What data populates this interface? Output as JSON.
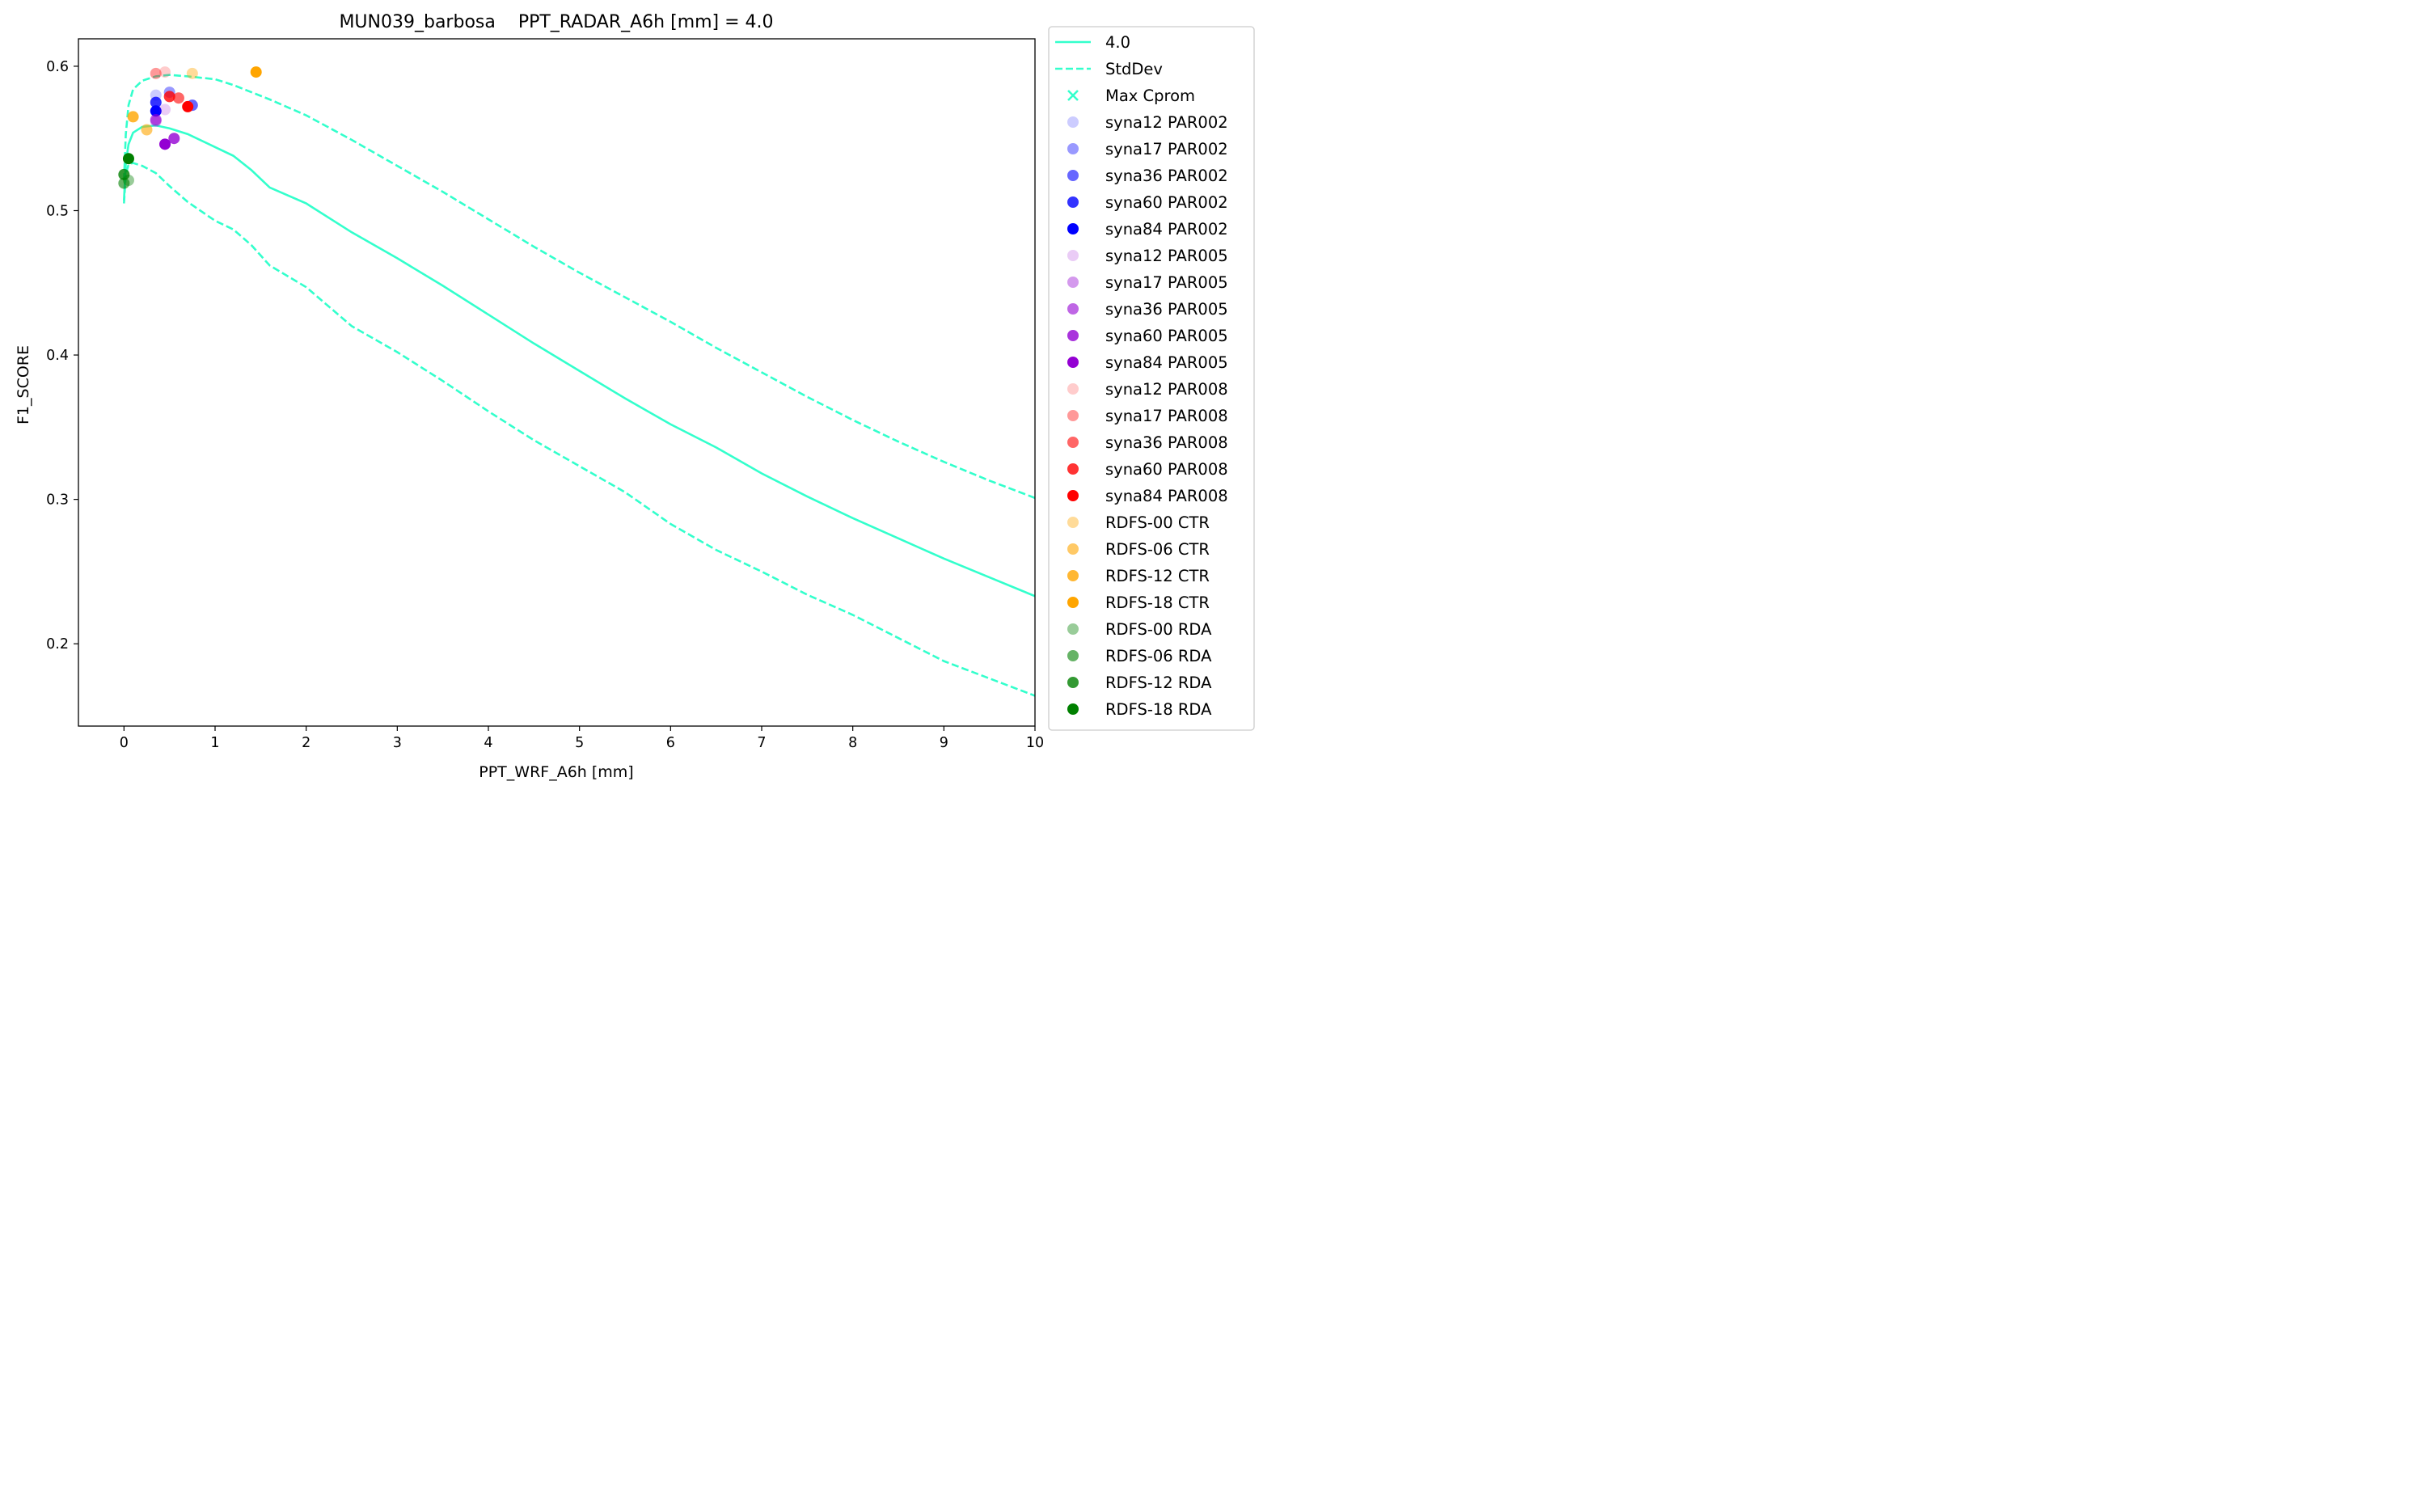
{
  "chart_data": {
    "type": "scatter",
    "title": "MUN039_barbosa    PPT_RADAR_A6h [mm] = 4.0",
    "xlabel": "PPT_WRF_A6h [mm]",
    "ylabel": "F1_SCORE",
    "xlim": [
      -0.5,
      10
    ],
    "ylim": [
      0.143,
      0.619
    ],
    "xticks": [
      0,
      1,
      2,
      3,
      4,
      5,
      6,
      7,
      8,
      9,
      10
    ],
    "yticks": [
      0.2,
      0.3,
      0.4,
      0.5,
      0.6
    ],
    "grid": false,
    "legend_position": "outside-right",
    "lines": [
      {
        "name": "4.0",
        "style": "solid",
        "color": "#33ffcc",
        "x": [
          0.0,
          0.02,
          0.05,
          0.1,
          0.2,
          0.35,
          0.5,
          0.7,
          1.0,
          1.2,
          1.4,
          1.6,
          2.0,
          2.5,
          3.0,
          3.5,
          4.0,
          4.5,
          5.0,
          5.5,
          6.0,
          6.5,
          7.0,
          7.5,
          8.0,
          8.5,
          9.0,
          9.5,
          10.0
        ],
        "y": [
          0.507,
          0.533,
          0.546,
          0.554,
          0.558,
          0.559,
          0.557,
          0.553,
          0.544,
          0.538,
          0.528,
          0.516,
          0.505,
          0.485,
          0.467,
          0.448,
          0.428,
          0.408,
          0.389,
          0.37,
          0.352,
          0.336,
          0.318,
          0.302,
          0.287,
          0.273,
          0.259,
          0.246,
          0.233
        ]
      },
      {
        "name": "StdDev",
        "style": "dashed",
        "color": "#33ffcc",
        "x": [
          0.0,
          0.02,
          0.05,
          0.1,
          0.2,
          0.35,
          0.5,
          0.7,
          1.0,
          1.2,
          1.4,
          1.6,
          2.0,
          2.5,
          3.0,
          3.5,
          4.0,
          4.5,
          5.0,
          5.5,
          6.0,
          6.5,
          7.0,
          7.5,
          8.0,
          8.5,
          9.0,
          9.5,
          10.0
        ],
        "y": [
          0.521,
          0.553,
          0.573,
          0.584,
          0.59,
          0.593,
          0.594,
          0.593,
          0.591,
          0.587,
          0.582,
          0.577,
          0.566,
          0.549,
          0.531,
          0.513,
          0.494,
          0.475,
          0.457,
          0.44,
          0.423,
          0.405,
          0.388,
          0.371,
          0.355,
          0.34,
          0.326,
          0.313,
          0.301
        ]
      },
      {
        "name": "",
        "style": "dashed",
        "color": "#33ffcc",
        "x": [
          0.0,
          0.02,
          0.05,
          0.1,
          0.2,
          0.35,
          0.5,
          0.7,
          1.0,
          1.2,
          1.4,
          1.6,
          2.0,
          2.5,
          3.0,
          3.5,
          4.0,
          4.5,
          5.0,
          5.5,
          6.0,
          6.5,
          7.0,
          7.5,
          8.0,
          8.5,
          9.0,
          9.5,
          10.0
        ],
        "y": [
          0.505,
          0.525,
          0.532,
          0.533,
          0.531,
          0.526,
          0.517,
          0.506,
          0.493,
          0.487,
          0.476,
          0.462,
          0.447,
          0.42,
          0.402,
          0.382,
          0.361,
          0.341,
          0.323,
          0.305,
          0.283,
          0.265,
          0.25,
          0.234,
          0.22,
          0.204,
          0.188,
          0.176,
          0.164
        ]
      }
    ],
    "series": [
      {
        "name": "Max Cprom",
        "marker": "x",
        "color": "#33ffcc",
        "opacity": 1.0,
        "points": []
      },
      {
        "name": "syna12 PAR002",
        "color": "#0000ff",
        "opacity": 0.2,
        "points": [
          {
            "x": 0.35,
            "y": 0.58
          }
        ]
      },
      {
        "name": "syna17 PAR002",
        "color": "#0000ff",
        "opacity": 0.4,
        "points": [
          {
            "x": 0.5,
            "y": 0.582
          }
        ]
      },
      {
        "name": "syna36 PAR002",
        "color": "#0000ff",
        "opacity": 0.6,
        "points": [
          {
            "x": 0.75,
            "y": 0.573
          }
        ]
      },
      {
        "name": "syna60 PAR002",
        "color": "#0000ff",
        "opacity": 0.8,
        "points": [
          {
            "x": 0.35,
            "y": 0.575
          }
        ]
      },
      {
        "name": "syna84 PAR002",
        "color": "#0000ff",
        "opacity": 1.0,
        "points": [
          {
            "x": 0.35,
            "y": 0.569
          }
        ]
      },
      {
        "name": "syna12 PAR005",
        "color": "#9400d3",
        "opacity": 0.2,
        "points": [
          {
            "x": 0.45,
            "y": 0.57
          }
        ]
      },
      {
        "name": "syna17 PAR005",
        "color": "#9400d3",
        "opacity": 0.4,
        "points": [
          {
            "x": 0.35,
            "y": 0.562
          }
        ]
      },
      {
        "name": "syna36 PAR005",
        "color": "#9400d3",
        "opacity": 0.6,
        "points": [
          {
            "x": 0.35,
            "y": 0.563
          }
        ]
      },
      {
        "name": "syna60 PAR005",
        "color": "#9400d3",
        "opacity": 0.8,
        "points": [
          {
            "x": 0.55,
            "y": 0.55
          }
        ]
      },
      {
        "name": "syna84 PAR005",
        "color": "#9400d3",
        "opacity": 1.0,
        "points": [
          {
            "x": 0.45,
            "y": 0.546
          }
        ]
      },
      {
        "name": "syna12 PAR008",
        "color": "#ff0000",
        "opacity": 0.2,
        "points": [
          {
            "x": 0.45,
            "y": 0.596
          }
        ]
      },
      {
        "name": "syna17 PAR008",
        "color": "#ff0000",
        "opacity": 0.4,
        "points": [
          {
            "x": 0.35,
            "y": 0.595
          }
        ]
      },
      {
        "name": "syna36 PAR008",
        "color": "#ff0000",
        "opacity": 0.6,
        "points": [
          {
            "x": 0.6,
            "y": 0.578
          }
        ]
      },
      {
        "name": "syna60 PAR008",
        "color": "#ff0000",
        "opacity": 0.8,
        "points": [
          {
            "x": 0.5,
            "y": 0.579
          }
        ]
      },
      {
        "name": "syna84 PAR008",
        "color": "#ff0000",
        "opacity": 1.0,
        "points": [
          {
            "x": 0.7,
            "y": 0.572
          }
        ]
      },
      {
        "name": "RDFS-00 CTR",
        "color": "#ffa500",
        "opacity": 0.4,
        "points": [
          {
            "x": 0.75,
            "y": 0.595
          }
        ]
      },
      {
        "name": "RDFS-06 CTR",
        "color": "#ffa500",
        "opacity": 0.6,
        "points": [
          {
            "x": 0.25,
            "y": 0.556
          }
        ]
      },
      {
        "name": "RDFS-12 CTR",
        "color": "#ffa500",
        "opacity": 0.8,
        "points": [
          {
            "x": 0.1,
            "y": 0.565
          }
        ]
      },
      {
        "name": "RDFS-18 CTR",
        "color": "#ffa500",
        "opacity": 1.0,
        "points": [
          {
            "x": 1.45,
            "y": 0.596
          }
        ]
      },
      {
        "name": "RDFS-00 RDA",
        "color": "#008000",
        "opacity": 0.4,
        "points": [
          {
            "x": 0.05,
            "y": 0.521
          }
        ]
      },
      {
        "name": "RDFS-06 RDA",
        "color": "#008000",
        "opacity": 0.6,
        "points": [
          {
            "x": 0.0,
            "y": 0.519
          }
        ]
      },
      {
        "name": "RDFS-12 RDA",
        "color": "#008000",
        "opacity": 0.8,
        "points": [
          {
            "x": 0.0,
            "y": 0.525
          }
        ]
      },
      {
        "name": "RDFS-18 RDA",
        "color": "#008000",
        "opacity": 1.0,
        "points": [
          {
            "x": 0.05,
            "y": 0.536
          }
        ]
      }
    ]
  }
}
